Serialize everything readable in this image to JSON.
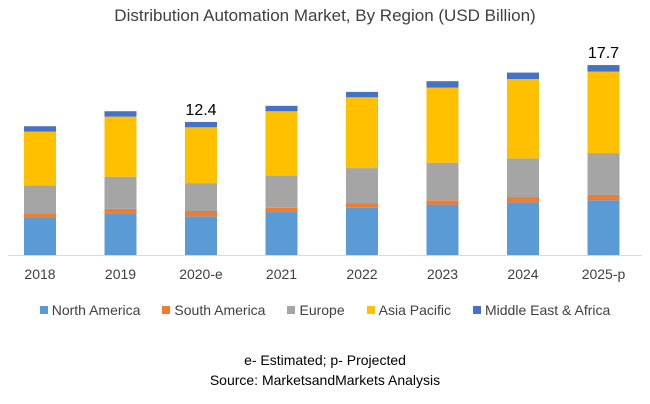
{
  "chart_data": {
    "type": "bar",
    "stacked": true,
    "title": "Distribution Automation Market, By Region (USD Billion)",
    "xlabel": "",
    "ylabel": "",
    "ylim": [
      0,
      19
    ],
    "grid": false,
    "legend_position": "bottom",
    "categories": [
      "2018",
      "2019",
      "2020-e",
      "2021",
      "2022",
      "2023",
      "2024",
      "2025-p"
    ],
    "series": [
      {
        "name": "North America",
        "color": "#5B9BD5",
        "values": [
          3.5,
          3.9,
          3.6,
          4.0,
          4.4,
          4.7,
          4.9,
          5.1
        ]
      },
      {
        "name": "South America",
        "color": "#ED7D31",
        "values": [
          0.4,
          0.4,
          0.5,
          0.4,
          0.4,
          0.4,
          0.5,
          0.5
        ]
      },
      {
        "name": "Europe",
        "color": "#A5A5A5",
        "values": [
          2.6,
          3.0,
          2.6,
          3.0,
          3.3,
          3.5,
          3.6,
          3.9
        ]
      },
      {
        "name": "Asia Pacific",
        "color": "#FFC000",
        "values": [
          5.0,
          5.6,
          5.2,
          6.0,
          6.6,
          7.0,
          7.4,
          7.6
        ]
      },
      {
        "name": "Middle East & Africa",
        "color": "#4472C4",
        "values": [
          0.5,
          0.5,
          0.5,
          0.5,
          0.5,
          0.6,
          0.6,
          0.6
        ]
      }
    ],
    "annotations": [
      {
        "category": "2020-e",
        "text": "12.4"
      },
      {
        "category": "2025-p",
        "text": "17.7"
      }
    ]
  },
  "footnotes": {
    "abbrev": "e- Estimated; p- Projected",
    "source": "Source: MarketsandMarkets Analysis"
  }
}
